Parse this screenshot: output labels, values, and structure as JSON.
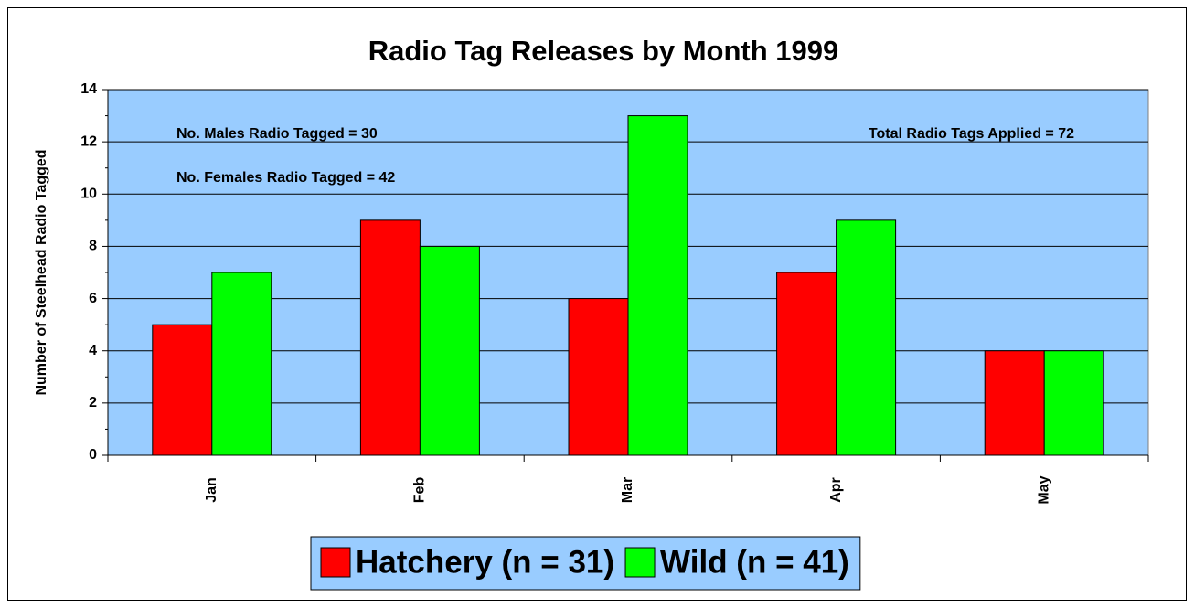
{
  "chart_data": {
    "type": "bar",
    "title": "Radio Tag Releases by Month 1999",
    "y_label": "Number of Steelhead Radio Tagged",
    "categories": [
      "Jan",
      "Feb",
      "Mar",
      "Apr",
      "May"
    ],
    "series": [
      {
        "name": "Hatchery (n = 31)",
        "color": "#ff0000",
        "values": [
          5,
          9,
          6,
          7,
          4
        ]
      },
      {
        "name": "Wild (n = 41)",
        "color": "#00ff00",
        "values": [
          7,
          8,
          13,
          9,
          4
        ]
      }
    ],
    "annotations": [
      "No. Males Radio Tagged = 30",
      "No. Females Radio Tagged = 42",
      "Total  Radio Tags Applied = 72"
    ],
    "ylim": [
      0,
      14
    ],
    "yticks": [
      0,
      2,
      4,
      6,
      8,
      10,
      12,
      14
    ],
    "grid": true,
    "plot_background": "#99ccff",
    "legend_position": "bottom"
  }
}
